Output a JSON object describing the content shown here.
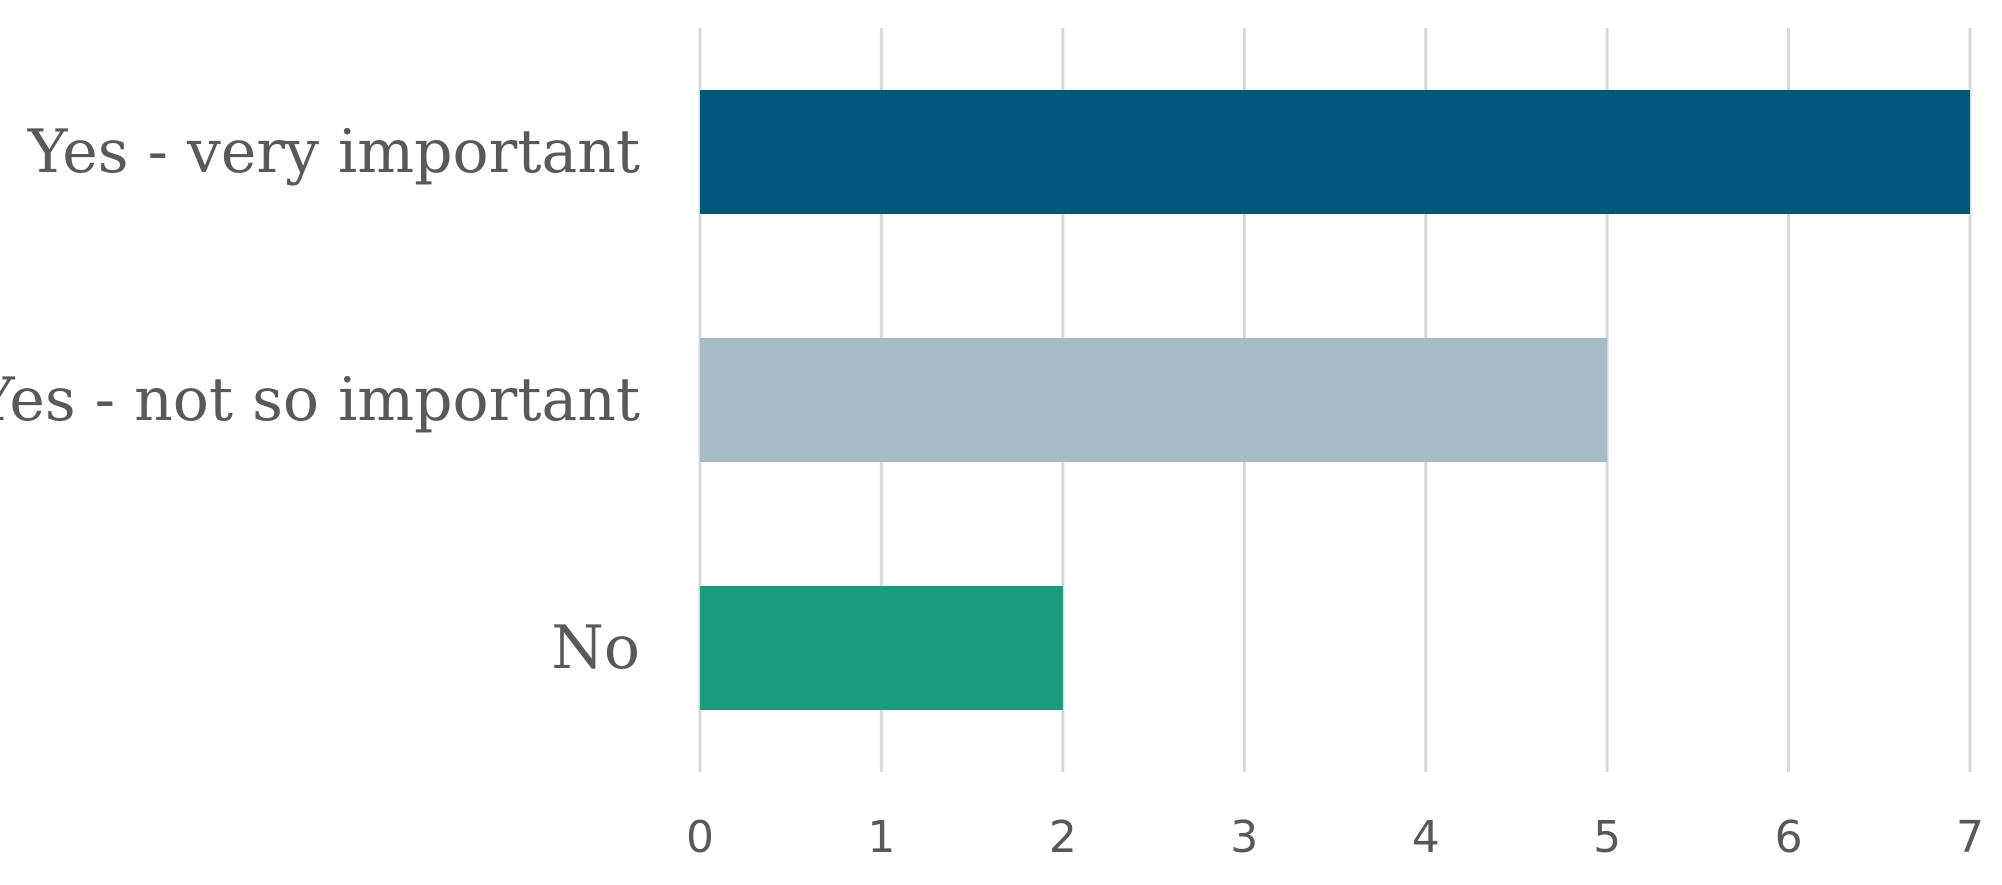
{
  "chart_data": {
    "type": "bar",
    "orientation": "horizontal",
    "title": "",
    "xlabel": "",
    "ylabel": "",
    "categories": [
      "Yes - very important",
      "Yes - not so important",
      "No"
    ],
    "values": [
      7,
      5,
      2
    ],
    "bar_colors": [
      "#02587A",
      "#A7BBC8",
      "#199B7C"
    ],
    "xlim": [
      0,
      7
    ],
    "x_ticks": [
      "0",
      "1",
      "2",
      "3",
      "4",
      "5",
      "6",
      "7"
    ],
    "grid": "vertical",
    "legend": "none"
  }
}
